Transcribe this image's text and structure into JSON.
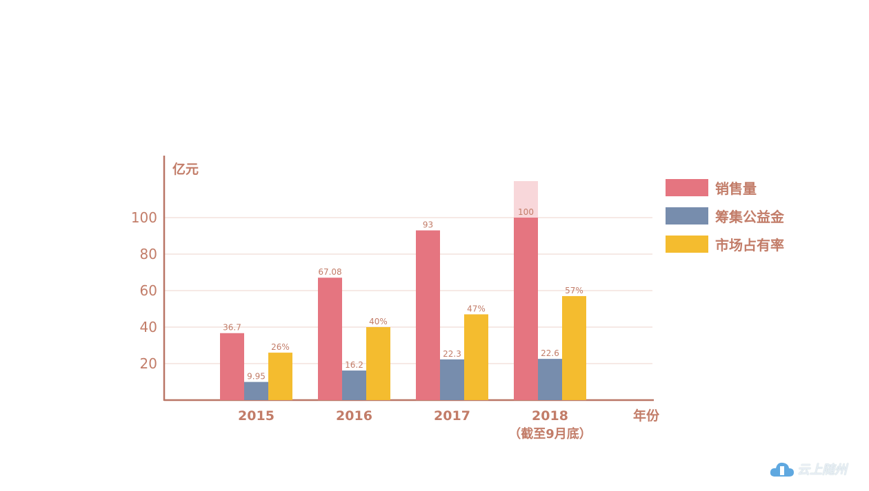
{
  "chart_data": {
    "type": "bar",
    "ylabel": "亿元",
    "xlabel": "年份",
    "categories": [
      "2015",
      "2016",
      "2017",
      "2018"
    ],
    "category_sublabels": [
      "",
      "",
      "",
      "（截至9月底）"
    ],
    "yticks": [
      20,
      40,
      60,
      80,
      100
    ],
    "ylim": [
      0,
      125
    ],
    "grid": true,
    "legend_position": "right",
    "series": [
      {
        "name": "销售量",
        "color": "#e57580",
        "values": [
          36.7,
          67.08,
          93,
          100
        ],
        "labels": [
          "36.7",
          "67.08",
          "93",
          "100"
        ]
      },
      {
        "name": "筹集公益金",
        "color": "#778dad",
        "values": [
          9.95,
          16.2,
          22.3,
          22.6
        ],
        "labels": [
          "9.95",
          "16.2",
          "22.3",
          "22.6"
        ]
      },
      {
        "name": "市场占有率",
        "color": "#f4bc2f",
        "values": [
          26,
          40,
          47,
          57
        ],
        "labels": [
          "26%",
          "40%",
          "47%",
          "57%"
        ]
      }
    ],
    "extension": {
      "category": "2018",
      "series": "销售量",
      "from": 100,
      "to": 120,
      "color": "#f8d7da"
    }
  },
  "logo": {
    "text": "云上随州"
  }
}
